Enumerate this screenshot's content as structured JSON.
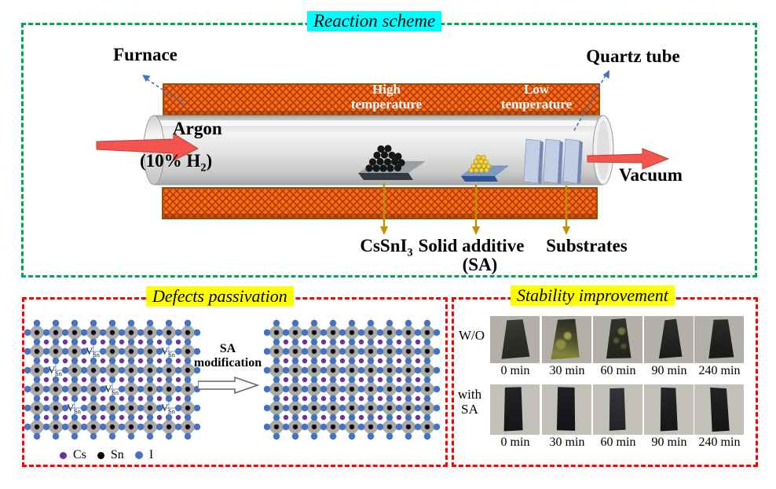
{
  "reaction": {
    "title": "Reaction scheme",
    "furnace": "Furnace",
    "quartz_tube": "Quartz tube",
    "zones": {
      "high": [
        "High",
        "temperature"
      ],
      "low": [
        "Low",
        "temperature"
      ]
    },
    "argon": "Argon",
    "argon_gas": {
      "pre": "(10% H",
      "sub": "2",
      "post": ")"
    },
    "vacuum": "Vacuum",
    "source": {
      "pre": "CsSnI",
      "sub": "3"
    },
    "additive_line1": "Solid additive",
    "additive_line2": "(SA)",
    "substrates": "Substrates"
  },
  "defects": {
    "title": "Defects passivation",
    "modification": [
      "SA",
      "modification"
    ],
    "vacancy_label": {
      "main": "V",
      "sub": "Sn"
    },
    "legend": [
      {
        "name": "Cs",
        "color": "#7030A0"
      },
      {
        "name": "Sn",
        "color": "#000000"
      },
      {
        "name": "I",
        "color": "#4472C4"
      }
    ],
    "lattice": {
      "cols": 9,
      "rows": 6,
      "cell": 24,
      "colors": {
        "octahedron": "#A9A9A9",
        "bond": "#7E96C6",
        "sn": "#111111",
        "cs": "#7030A0",
        "i": "#4472C4"
      },
      "left_vacancies": [
        [
          3,
          1
        ],
        [
          7,
          1
        ],
        [
          1,
          2
        ],
        [
          4,
          3
        ],
        [
          2,
          4
        ],
        [
          7,
          4
        ]
      ],
      "right_vacancies": []
    }
  },
  "stability": {
    "title": "Stability improvement",
    "rows": [
      {
        "label": "W/O",
        "label2": "",
        "times": [
          "0 min",
          "30 min",
          "60 min",
          "90 min",
          "240 min"
        ]
      },
      {
        "label": "with",
        "label2": "SA",
        "times": [
          "0 min",
          "30 min",
          "60 min",
          "90 min",
          "240 min"
        ]
      }
    ]
  },
  "colors": {
    "green_dash": "#00A651",
    "red_dash": "#FF0000",
    "cyan_highlight": "#00FEFE",
    "yellow_highlight": "#FFFF00",
    "furnace_orange": "#EB7414",
    "furnace_hatch": "#C2300C",
    "flow_arrow_red": "#F4544E",
    "pointer_gold": "#C28F00",
    "pointer_blue": "#4472C4",
    "substrate_blue": "#C2CEE3"
  }
}
